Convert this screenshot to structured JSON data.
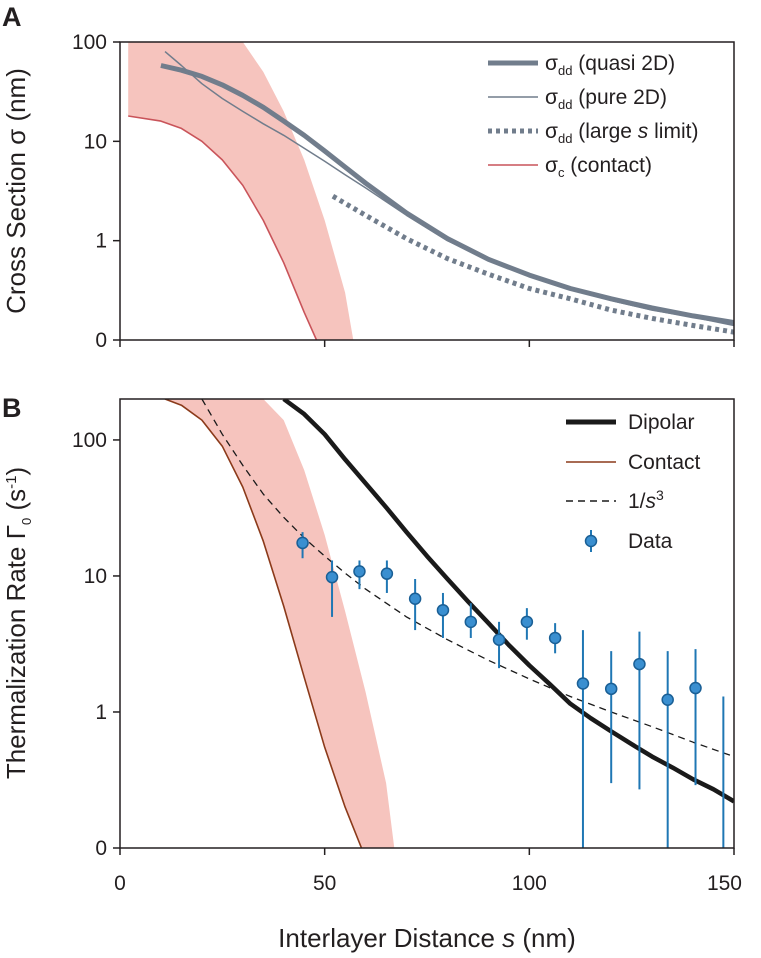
{
  "chart_data": [
    {
      "panel": "A",
      "type": "line",
      "xlabel": "",
      "ylabel": "Cross Section σ (nm)",
      "xlim": [
        0,
        150
      ],
      "y_scale": "log",
      "y_ticks": [
        {
          "label": "0",
          "value": 0.1
        },
        {
          "label": "1",
          "value": 1
        },
        {
          "label": "10",
          "value": 10
        },
        {
          "label": "100",
          "value": 100
        }
      ],
      "legend_position": "top-right",
      "legend": [
        {
          "main": "σ",
          "sub": "dd",
          "rest": " (quasi 2D)",
          "style": "thick-gray"
        },
        {
          "main": "σ",
          "sub": "dd",
          "rest": " (pure 2D)",
          "style": "thin-gray"
        },
        {
          "main": "σ",
          "sub": "dd",
          "rest": " (large ",
          "ital": "s",
          "rest2": " limit)",
          "style": "dotted-gray"
        },
        {
          "main": "σ",
          "sub": "c",
          "rest": "  (contact)",
          "style": "thin-red"
        }
      ],
      "series": [
        {
          "name": "σdd (quasi 2D)",
          "color": "#717d8c",
          "x": [
            10,
            15,
            20,
            25,
            30,
            35,
            40,
            45,
            50,
            55,
            60,
            70,
            80,
            90,
            100,
            110,
            120,
            130,
            140,
            150
          ],
          "y": [
            58,
            52,
            45,
            37,
            29,
            22,
            16,
            11.5,
            8.0,
            5.5,
            3.8,
            1.9,
            1.05,
            0.65,
            0.45,
            0.33,
            0.26,
            0.21,
            0.175,
            0.15
          ]
        },
        {
          "name": "σdd (pure 2D)",
          "color": "#717d8c",
          "x": [
            11,
            15,
            20,
            25,
            30,
            35,
            40,
            45,
            50,
            55,
            60,
            70,
            80,
            90,
            100,
            110,
            120,
            130,
            140,
            150
          ],
          "y": [
            80,
            58,
            38,
            27,
            20,
            15,
            11.5,
            8.5,
            6.3,
            4.6,
            3.4,
            1.8,
            1.0,
            0.65,
            0.45,
            0.33,
            0.25,
            0.2,
            0.17,
            0.14
          ]
        },
        {
          "name": "σdd (large s limit)",
          "color": "#717d8c",
          "x": [
            52,
            60,
            70,
            80,
            90,
            100,
            110,
            120,
            130,
            140,
            150
          ],
          "y": [
            2.8,
            1.8,
            1.05,
            0.66,
            0.46,
            0.33,
            0.26,
            0.2,
            0.165,
            0.14,
            0.12
          ]
        },
        {
          "name": "σc (contact)",
          "color": "#c9545a",
          "x": [
            2,
            10,
            15,
            20,
            25,
            30,
            35,
            40,
            45,
            48
          ],
          "y": [
            18,
            16,
            13.5,
            10,
            6.5,
            3.6,
            1.6,
            0.6,
            0.19,
            0.1
          ]
        }
      ],
      "band": {
        "name": "contact uncertainty",
        "color": "#f6c4be",
        "x_upper": [
          2,
          3,
          30,
          35,
          40,
          45,
          50,
          55,
          57
        ],
        "y_upper": [
          100,
          100,
          100,
          50,
          20,
          6.5,
          1.6,
          0.3,
          0.1
        ],
        "x_lower": [
          48,
          45,
          40,
          35,
          30,
          25,
          20,
          15,
          10,
          5,
          2
        ],
        "y_lower": [
          0.1,
          0.19,
          0.6,
          1.6,
          3.6,
          6.5,
          10,
          13.5,
          16,
          17.5,
          18
        ]
      }
    },
    {
      "panel": "B",
      "type": "scatter",
      "xlabel": "Interlayer Distance s (nm)",
      "ylabel": "Thermalization Rate Γ0 (s⁻¹)",
      "xlim": [
        0,
        150
      ],
      "x_ticks": [
        {
          "label": "0",
          "value": 0
        },
        {
          "label": "50",
          "value": 50
        },
        {
          "label": "100",
          "value": 100
        },
        {
          "label": "150",
          "value": 150
        }
      ],
      "y_scale": "log",
      "y_ticks": [
        {
          "label": "0",
          "value": 0.1
        },
        {
          "label": "1",
          "value": 1
        },
        {
          "label": "10",
          "value": 10
        },
        {
          "label": "100",
          "value": 100
        }
      ],
      "legend_position": "top-right",
      "legend": [
        {
          "label": "Dipolar",
          "style": "thick-black"
        },
        {
          "label": "Contact",
          "style": "thin-brown"
        },
        {
          "label": "1/s3",
          "style": "dashed"
        },
        {
          "label": "Data",
          "style": "marker"
        }
      ],
      "series": [
        {
          "name": "Dipolar",
          "color": "#1a1a1a",
          "x": [
            40,
            45,
            50,
            55,
            60,
            65,
            70,
            75,
            80,
            85,
            90,
            95,
            100,
            105,
            110,
            115,
            120,
            125,
            130,
            135,
            140,
            145,
            150
          ],
          "y": [
            200,
            155,
            110,
            72,
            48,
            32,
            21,
            14,
            9.5,
            6.5,
            4.5,
            3.1,
            2.2,
            1.6,
            1.15,
            0.9,
            0.72,
            0.58,
            0.47,
            0.39,
            0.32,
            0.27,
            0.22
          ]
        },
        {
          "name": "Contact",
          "color": "#8b3a1a",
          "x": [
            11,
            15,
            20,
            25,
            30,
            35,
            40,
            45,
            50,
            55,
            59
          ],
          "y": [
            200,
            180,
            140,
            90,
            45,
            18,
            6.0,
            1.8,
            0.55,
            0.2,
            0.1
          ]
        },
        {
          "name": "1/s3",
          "color": "#1a1a1a",
          "x": [
            20,
            25,
            30,
            35,
            40,
            45,
            50,
            55,
            60,
            70,
            80,
            90,
            100,
            110,
            120,
            130,
            140,
            150
          ],
          "y": [
            200,
            110,
            65,
            40,
            27,
            19,
            14,
            10.5,
            8.0,
            5.0,
            3.4,
            2.4,
            1.75,
            1.3,
            1.0,
            0.78,
            0.6,
            0.47
          ]
        }
      ],
      "band": {
        "name": "contact uncertainty",
        "color": "#f6c4be",
        "x_upper": [
          30,
          35,
          40,
          45,
          50,
          55,
          60,
          65,
          67
        ],
        "y_upper": [
          200,
          200,
          140,
          60,
          20,
          5.5,
          1.4,
          0.3,
          0.1
        ],
        "x_lower": [
          59,
          55,
          50,
          45,
          40,
          35,
          30,
          25,
          20,
          15,
          11
        ],
        "y_lower": [
          0.1,
          0.2,
          0.55,
          1.8,
          6.0,
          18,
          45,
          90,
          140,
          180,
          200
        ]
      },
      "data_points": {
        "name": "Data",
        "color": "#1f77b4",
        "x": [
          44.6,
          51.8,
          58.5,
          65.2,
          72.1,
          78.9,
          85.7,
          92.6,
          99.4,
          106.3,
          113.1,
          120,
          126.9,
          133.8,
          140.6
        ],
        "y": [
          17.5,
          9.8,
          10.8,
          10.4,
          6.8,
          5.6,
          4.6,
          3.4,
          4.6,
          3.5,
          1.62,
          1.48,
          2.25,
          1.23,
          1.5
        ],
        "err_low": [
          13.5,
          5.0,
          8.0,
          7.5,
          4.0,
          3.5,
          3.5,
          2.1,
          3.4,
          2.7,
          0.1,
          0.3,
          0.27,
          0.1,
          0.29
        ],
        "err_high": [
          21.0,
          13.0,
          13.0,
          13.0,
          9.5,
          7.5,
          6.3,
          4.6,
          5.8,
          4.5,
          4.0,
          2.8,
          3.9,
          2.8,
          2.9
        ]
      },
      "partial_error_bar": {
        "x": 147.4,
        "y_low": 0.1,
        "y_high": 1.3
      }
    }
  ]
}
